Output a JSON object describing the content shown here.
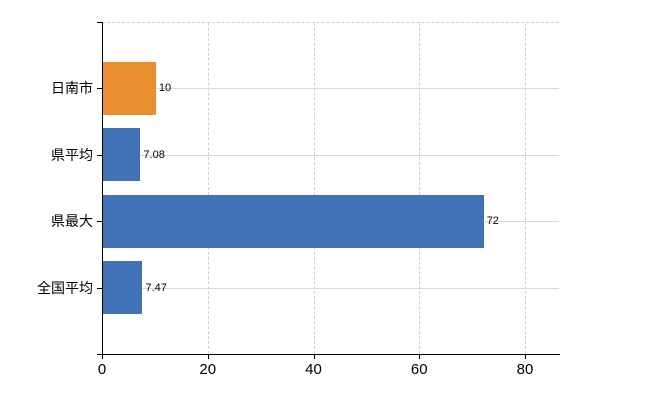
{
  "chart_data": {
    "type": "bar",
    "orientation": "horizontal",
    "title": "",
    "xlabel": "",
    "ylabel": "",
    "categories": [
      "日南市",
      "県平均",
      "県最大",
      "全国平均"
    ],
    "values": [
      10,
      7.08,
      72,
      7.47
    ],
    "value_labels": [
      "10",
      "7.08",
      "72",
      "7.47"
    ],
    "bar_colors": [
      "#e89030",
      "#4272b6",
      "#4272b6",
      "#4272b6"
    ],
    "x_ticks": [
      0,
      20,
      40,
      60,
      80
    ],
    "x_tick_labels": [
      "0",
      "20",
      "40",
      "60",
      "80"
    ],
    "xlim": [
      0,
      86.4
    ],
    "grid": true,
    "legend": false,
    "colors": {
      "orange_series": "#e89030",
      "blue_series": "#4272b6",
      "gridline": "#d4d4d4",
      "axis": "#000000",
      "background": "#ffffff",
      "text": "#000000"
    }
  }
}
